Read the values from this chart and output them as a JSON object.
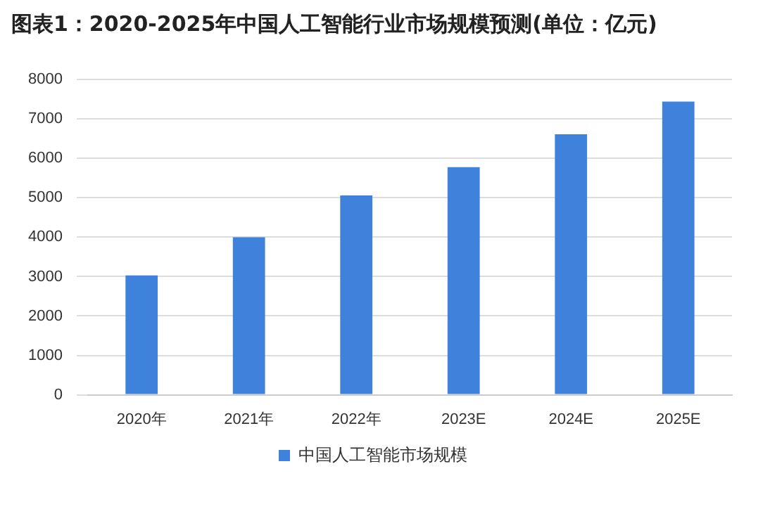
{
  "chart_data": {
    "type": "bar",
    "title": "图表1：2020-2025年中国人工智能行业市场规模预测(单位：亿元)",
    "categories": [
      "2020年",
      "2021年",
      "2022年",
      "2023E",
      "2024E",
      "2025E"
    ],
    "series": [
      {
        "name": "中国人工智能市场规模",
        "color": "#3f82dc",
        "values": [
          3030,
          4000,
          5060,
          5780,
          6610,
          7440
        ]
      }
    ],
    "ylim": [
      0,
      8000
    ],
    "yticks": [
      0,
      1000,
      2000,
      3000,
      4000,
      5000,
      6000,
      7000,
      8000
    ],
    "grid": "y",
    "legend": "bottom"
  }
}
